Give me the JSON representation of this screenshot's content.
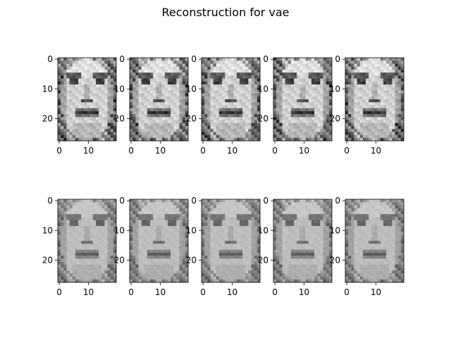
{
  "figure": {
    "title": "Reconstruction for vae"
  },
  "chart_data": {
    "type": "image-grid",
    "title": "Reconstruction for vae",
    "rows": 2,
    "cols": 5,
    "image_shape": [
      28,
      20
    ],
    "x_ticks": [
      "0",
      "10"
    ],
    "y_ticks": [
      "0",
      "10",
      "20"
    ],
    "x_tick_values": [
      0,
      10
    ],
    "y_tick_values": [
      0,
      10,
      20
    ],
    "colormap": "gray",
    "panels": [
      {
        "row": 0,
        "col": 0,
        "content": "face-grayscale-original"
      },
      {
        "row": 0,
        "col": 1,
        "content": "face-grayscale-original"
      },
      {
        "row": 0,
        "col": 2,
        "content": "face-grayscale-original"
      },
      {
        "row": 0,
        "col": 3,
        "content": "face-grayscale-original"
      },
      {
        "row": 0,
        "col": 4,
        "content": "face-grayscale-original"
      },
      {
        "row": 1,
        "col": 0,
        "content": "face-grayscale-reconstruction"
      },
      {
        "row": 1,
        "col": 1,
        "content": "face-grayscale-reconstruction"
      },
      {
        "row": 1,
        "col": 2,
        "content": "face-grayscale-reconstruction"
      },
      {
        "row": 1,
        "col": 3,
        "content": "face-grayscale-reconstruction"
      },
      {
        "row": 1,
        "col": 4,
        "content": "face-grayscale-reconstruction"
      }
    ]
  }
}
